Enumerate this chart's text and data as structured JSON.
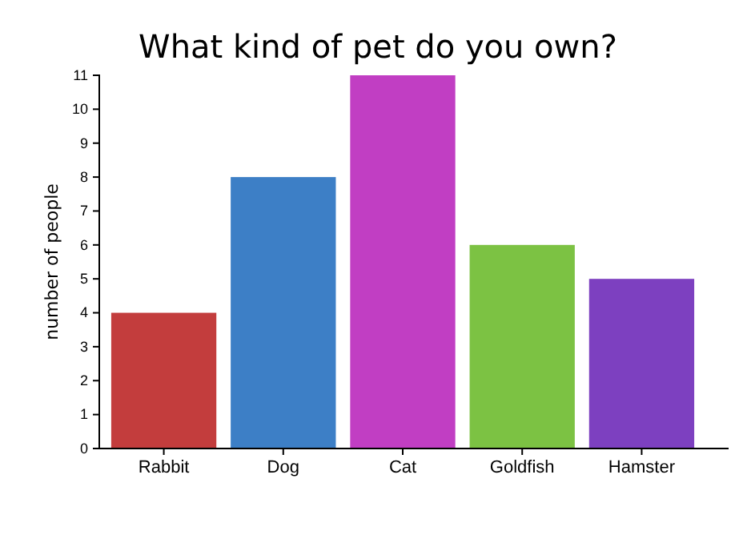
{
  "chart_data": {
    "type": "bar",
    "title": "What kind of pet do you own?",
    "ylabel": "number of people",
    "categories": [
      "Rabbit",
      "Dog",
      "Cat",
      "Goldfish",
      "Hamster"
    ],
    "values": [
      4,
      8,
      11,
      6,
      5
    ],
    "colors": [
      "#c33d3d",
      "#3d7fc6",
      "#c13ec3",
      "#7cc243",
      "#7d40c0"
    ],
    "ylim": [
      0,
      11
    ],
    "yticks": [
      0,
      1,
      2,
      3,
      4,
      5,
      6,
      7,
      8,
      9,
      10,
      11
    ],
    "grid": false
  }
}
